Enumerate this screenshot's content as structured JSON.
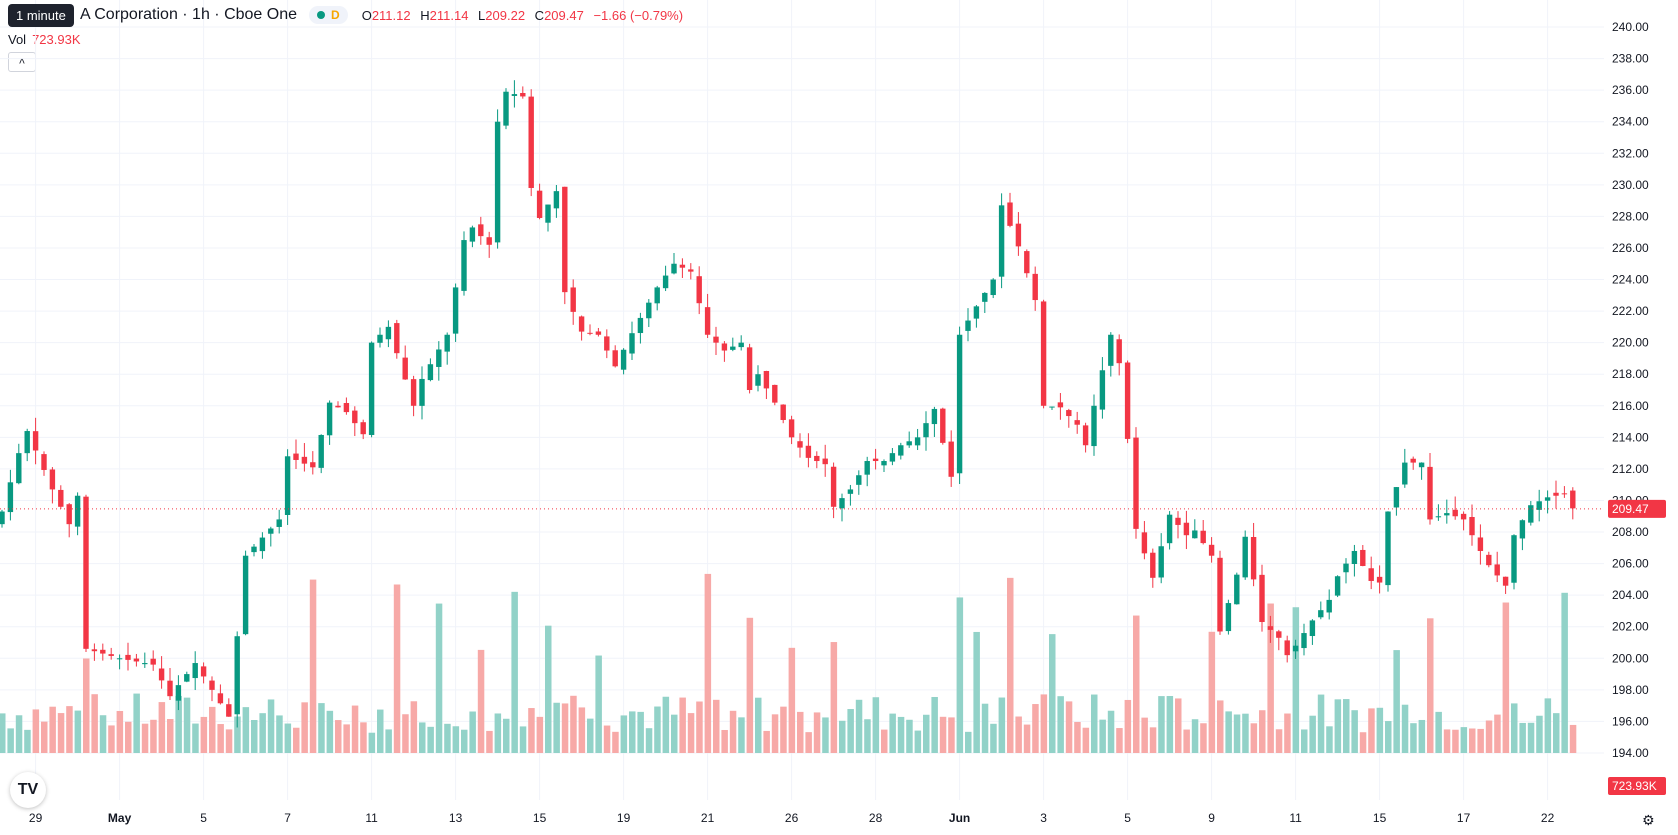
{
  "header": {
    "tooltip": "1 minute",
    "title": "A Corporation · 1h · Cboe One",
    "badge": "D",
    "ohlc": {
      "O": "211.12",
      "H": "211.14",
      "L": "209.22",
      "C": "209.47",
      "change": "−1.66 (−0.79%)"
    },
    "volume_label": "Vol",
    "volume_value": "723.93K",
    "collapse_icon": "chevron-up-icon"
  },
  "colors": {
    "up": "#089981",
    "down": "#f23645",
    "vol_up": "#92d2c8",
    "vol_down": "#f7a9a7",
    "grid": "#f0f3fa"
  },
  "settings_icon": "gear-icon",
  "logo_text": "TV",
  "chart_data": {
    "type": "candlestick",
    "y_axis": {
      "min": 192,
      "max": 241,
      "ticks": [
        "240.00",
        "238.00",
        "236.00",
        "234.00",
        "232.00",
        "230.00",
        "228.00",
        "226.00",
        "224.00",
        "222.00",
        "220.00",
        "218.00",
        "216.00",
        "214.00",
        "212.00",
        "210.00",
        "208.00",
        "206.00",
        "204.00",
        "202.00",
        "200.00",
        "198.00",
        "196.00",
        "194.00"
      ]
    },
    "x_ticks": [
      {
        "label": "29",
        "bar": 4,
        "bold": false
      },
      {
        "label": "May",
        "bar": 14,
        "bold": true
      },
      {
        "label": "5",
        "bar": 24,
        "bold": false
      },
      {
        "label": "7",
        "bar": 34,
        "bold": false
      },
      {
        "label": "11",
        "bar": 44,
        "bold": false
      },
      {
        "label": "13",
        "bar": 54,
        "bold": false
      },
      {
        "label": "15",
        "bar": 64,
        "bold": false
      },
      {
        "label": "19",
        "bar": 74,
        "bold": false
      },
      {
        "label": "21",
        "bar": 84,
        "bold": false
      },
      {
        "label": "26",
        "bar": 94,
        "bold": false
      },
      {
        "label": "28",
        "bar": 104,
        "bold": false
      },
      {
        "label": "Jun",
        "bar": 114,
        "bold": true
      },
      {
        "label": "3",
        "bar": 124,
        "bold": false
      },
      {
        "label": "5",
        "bar": 134,
        "bold": false
      },
      {
        "label": "9",
        "bar": 144,
        "bold": false
      },
      {
        "label": "11",
        "bar": 154,
        "bold": false
      },
      {
        "label": "15",
        "bar": 164,
        "bold": false
      },
      {
        "label": "17",
        "bar": 174,
        "bold": false
      },
      {
        "label": "22",
        "bar": 184,
        "bold": false
      }
    ],
    "last_price": "209.47",
    "last_volume": "723.93K",
    "close_waypoints": [
      [
        0,
        209.3
      ],
      [
        2,
        213
      ],
      [
        3,
        214.4
      ],
      [
        6,
        210.7
      ],
      [
        8,
        208.5
      ],
      [
        9,
        210.3
      ],
      [
        10,
        200.6
      ],
      [
        14,
        200
      ],
      [
        18,
        199.6
      ],
      [
        20,
        197.6
      ],
      [
        23,
        199.7
      ],
      [
        27,
        196.3
      ],
      [
        29,
        206.5
      ],
      [
        33,
        208.8
      ],
      [
        34,
        212.8
      ],
      [
        37,
        212.1
      ],
      [
        39,
        216.2
      ],
      [
        41,
        215.6
      ],
      [
        43,
        214.2
      ],
      [
        44,
        220
      ],
      [
        46,
        221
      ],
      [
        49,
        216
      ],
      [
        50,
        217.7
      ],
      [
        53,
        220.5
      ],
      [
        55,
        226.5
      ],
      [
        56,
        227.3
      ],
      [
        58,
        226.2
      ],
      [
        59,
        234
      ],
      [
        60,
        235.9
      ],
      [
        62,
        235.6
      ],
      [
        63,
        229.8
      ],
      [
        64,
        227.9
      ],
      [
        66,
        229.6
      ],
      [
        67,
        223.2
      ],
      [
        69,
        220.7
      ],
      [
        71,
        220.5
      ],
      [
        73,
        218.5
      ],
      [
        75,
        220.6
      ],
      [
        78,
        223.5
      ],
      [
        80,
        225
      ],
      [
        82,
        224.5
      ],
      [
        84,
        220.5
      ],
      [
        86,
        219.5
      ],
      [
        88,
        220
      ],
      [
        89,
        217
      ],
      [
        90,
        218
      ],
      [
        92,
        216.2
      ],
      [
        94,
        214
      ],
      [
        96,
        212.7
      ],
      [
        98,
        212.3
      ],
      [
        99,
        209.6
      ],
      [
        101,
        210.7
      ],
      [
        103,
        212.5
      ],
      [
        105,
        212.5
      ],
      [
        107,
        213.5
      ],
      [
        109,
        214
      ],
      [
        111,
        215.8
      ],
      [
        113,
        211.5
      ],
      [
        114,
        220.5
      ],
      [
        116,
        222.3
      ],
      [
        118,
        224
      ],
      [
        119,
        228.7
      ],
      [
        121,
        226.1
      ],
      [
        123,
        222.7
      ],
      [
        124,
        216
      ],
      [
        126,
        215.9
      ],
      [
        128,
        214.8
      ],
      [
        129,
        213.5
      ],
      [
        130,
        216
      ],
      [
        132,
        220.5
      ],
      [
        133,
        218.7
      ],
      [
        134,
        213.9
      ],
      [
        135,
        208.2
      ],
      [
        137,
        205.1
      ],
      [
        139,
        209.1
      ],
      [
        141,
        207.8
      ],
      [
        142,
        208.1
      ],
      [
        144,
        206.5
      ],
      [
        145,
        201.7
      ],
      [
        147,
        205.3
      ],
      [
        148,
        207.7
      ],
      [
        150,
        202.3
      ],
      [
        152,
        201.3
      ],
      [
        153,
        200.2
      ],
      [
        154,
        200.8
      ],
      [
        156,
        202.4
      ],
      [
        158,
        203.7
      ],
      [
        159,
        205.2
      ],
      [
        161,
        206.8
      ],
      [
        163,
        204.9
      ],
      [
        164,
        204.8
      ],
      [
        165,
        209.3
      ],
      [
        167,
        212.4
      ],
      [
        169,
        212.4
      ],
      [
        170,
        208.8
      ],
      [
        172,
        209.2
      ],
      [
        174,
        208.8
      ],
      [
        176,
        206.8
      ],
      [
        177,
        205.9
      ],
      [
        179,
        204.6
      ],
      [
        180,
        207.8
      ],
      [
        182,
        209.7
      ],
      [
        184,
        210.2
      ],
      [
        186,
        210.4
      ],
      [
        187,
        209.5
      ]
    ],
    "volume_spike_bars": [
      10,
      37,
      47,
      52,
      57,
      61,
      65,
      71,
      84,
      89,
      94,
      99,
      114,
      116,
      120,
      125,
      135,
      144,
      151,
      154,
      166,
      170,
      179,
      186
    ]
  }
}
